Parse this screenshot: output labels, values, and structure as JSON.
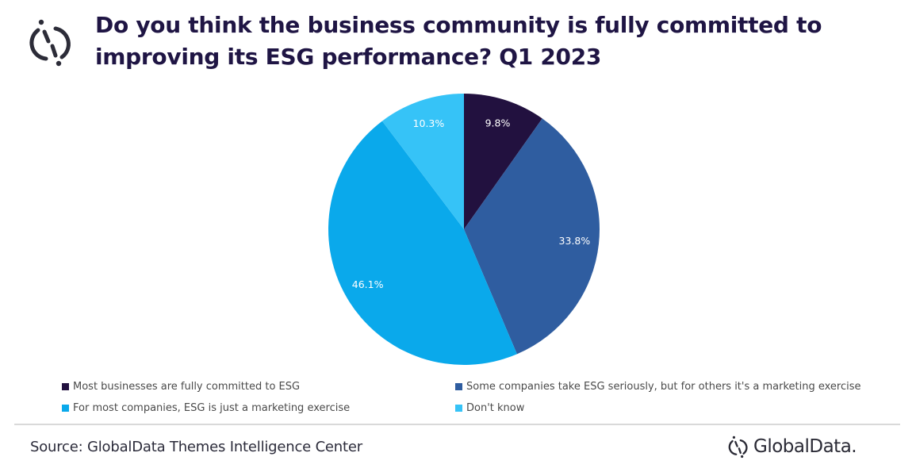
{
  "header": {
    "logo_icon": "globaldata-circle-logo-icon",
    "title_line1": "Do you think the business community is fully committed to",
    "title_line2": "improving its ESG performance? Q1 2023"
  },
  "chart_data": {
    "type": "pie",
    "title": "Do you think the business community is fully committed to improving its ESG performance? Q1 2023",
    "start_angle": "12 o'clock, clockwise",
    "legend_position": "bottom",
    "slices": [
      {
        "label": "Most businesses are fully committed to ESG",
        "value": 9.8,
        "display": "9.8%",
        "color": "#22113f"
      },
      {
        "label": "Some companies take ESG seriously, but for others it's a marketing exercise",
        "value": 33.8,
        "display": "33.8%",
        "color": "#2f5da0"
      },
      {
        "label": "For most companies, ESG is just a marketing exercise",
        "value": 46.1,
        "display": "46.1%",
        "color": "#0aa9eb"
      },
      {
        "label": "Don't know",
        "value": 10.3,
        "display": "10.3%",
        "color": "#36c3f7"
      }
    ]
  },
  "footer": {
    "source": "Source: GlobalData Themes Intelligence Center",
    "brand_icon": "globaldata-logo-icon",
    "brand_name": "GlobalData."
  }
}
